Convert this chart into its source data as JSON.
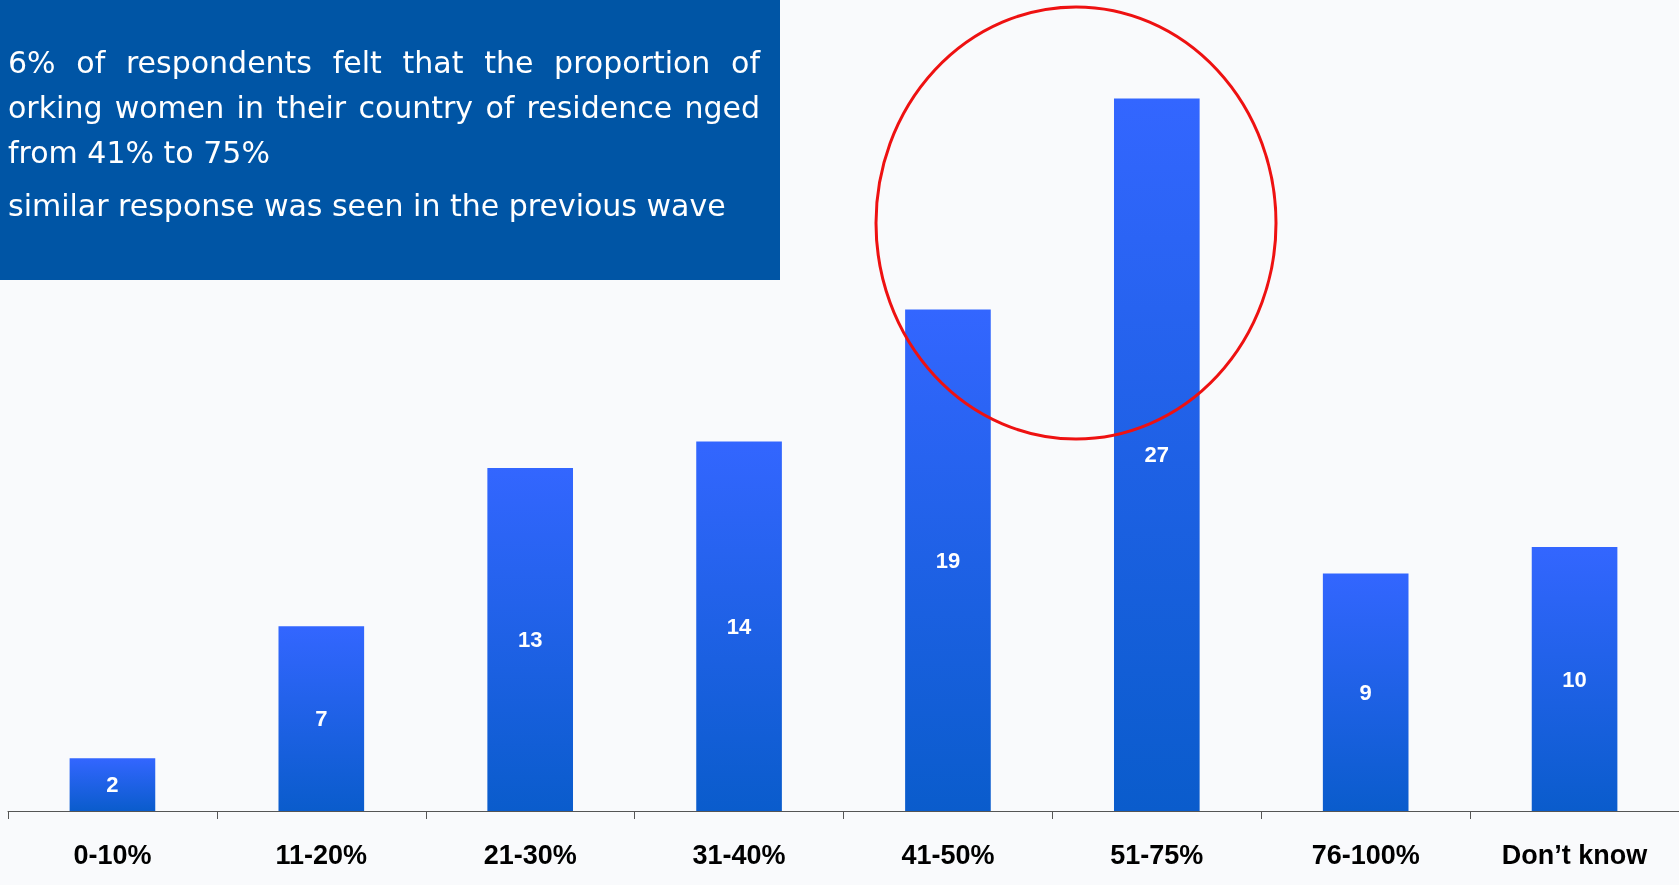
{
  "chart_data": {
    "type": "bar",
    "categories": [
      "0-10%",
      "11-20%",
      "21-30%",
      "31-40%",
      "41-50%",
      "51-75%",
      "76-100%",
      "Don’t know"
    ],
    "values": [
      2,
      7,
      13,
      14,
      19,
      27,
      9,
      10
    ],
    "color": "#3366ff",
    "data_labels": true,
    "grid": false,
    "annotations": [
      "6% of respondents felt that the proportion of orking women in their country of residence nged from 41% to 75%",
      "similar response was seen in the previous wave"
    ]
  }
}
